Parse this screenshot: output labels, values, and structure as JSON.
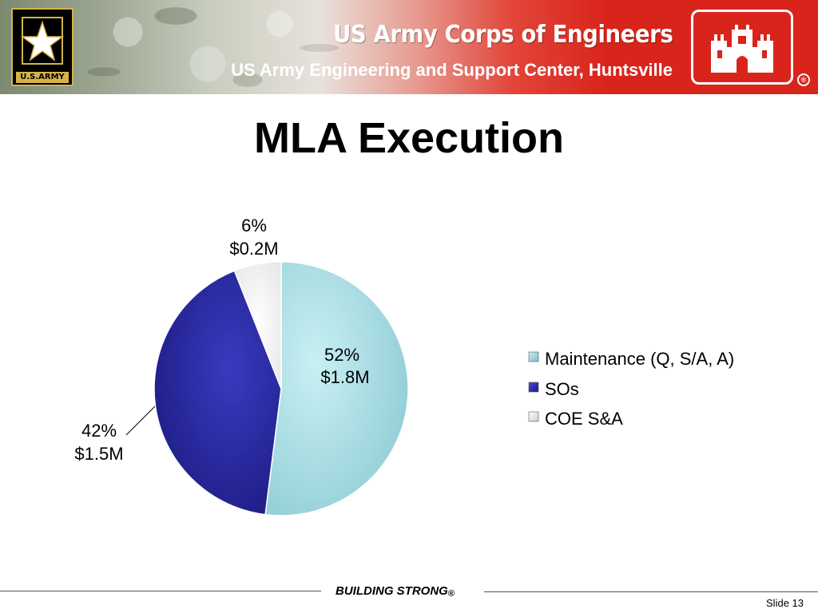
{
  "header": {
    "army_logo_text": "U.S.ARMY",
    "org_title": "US Army Corps of Engineers",
    "org_subtitle": "US Army Engineering and Support Center, Huntsville",
    "registered_mark": "®"
  },
  "slide": {
    "title": "MLA Execution",
    "number_label": "Slide 13"
  },
  "footer": {
    "tagline": "BUILDING STRONG",
    "registered_mark": "®"
  },
  "colors": {
    "maintenance": "#a9dfe6",
    "sos": "#2a2aa0",
    "coe": "#ffffff",
    "header_red": "#d9241b",
    "army_gold": "#d4b34a"
  },
  "chart_data": {
    "type": "pie",
    "title": "MLA Execution",
    "slices": [
      {
        "name": "Maintenance (Q, S/A, A)",
        "percent": 52,
        "value": 1.8,
        "label_pct": "52%",
        "label_amt": "$1.8M"
      },
      {
        "name": "SOs",
        "percent": 42,
        "value": 1.5,
        "label_pct": "42%",
        "label_amt": "$1.5M"
      },
      {
        "name": "COE S&A",
        "percent": 6,
        "value": 0.2,
        "label_pct": "6%",
        "label_amt": "$0.2M"
      }
    ],
    "legend": [
      "Maintenance (Q, S/A, A)",
      "SOs",
      "COE S&A"
    ],
    "legend_position": "right",
    "units": "$M"
  }
}
